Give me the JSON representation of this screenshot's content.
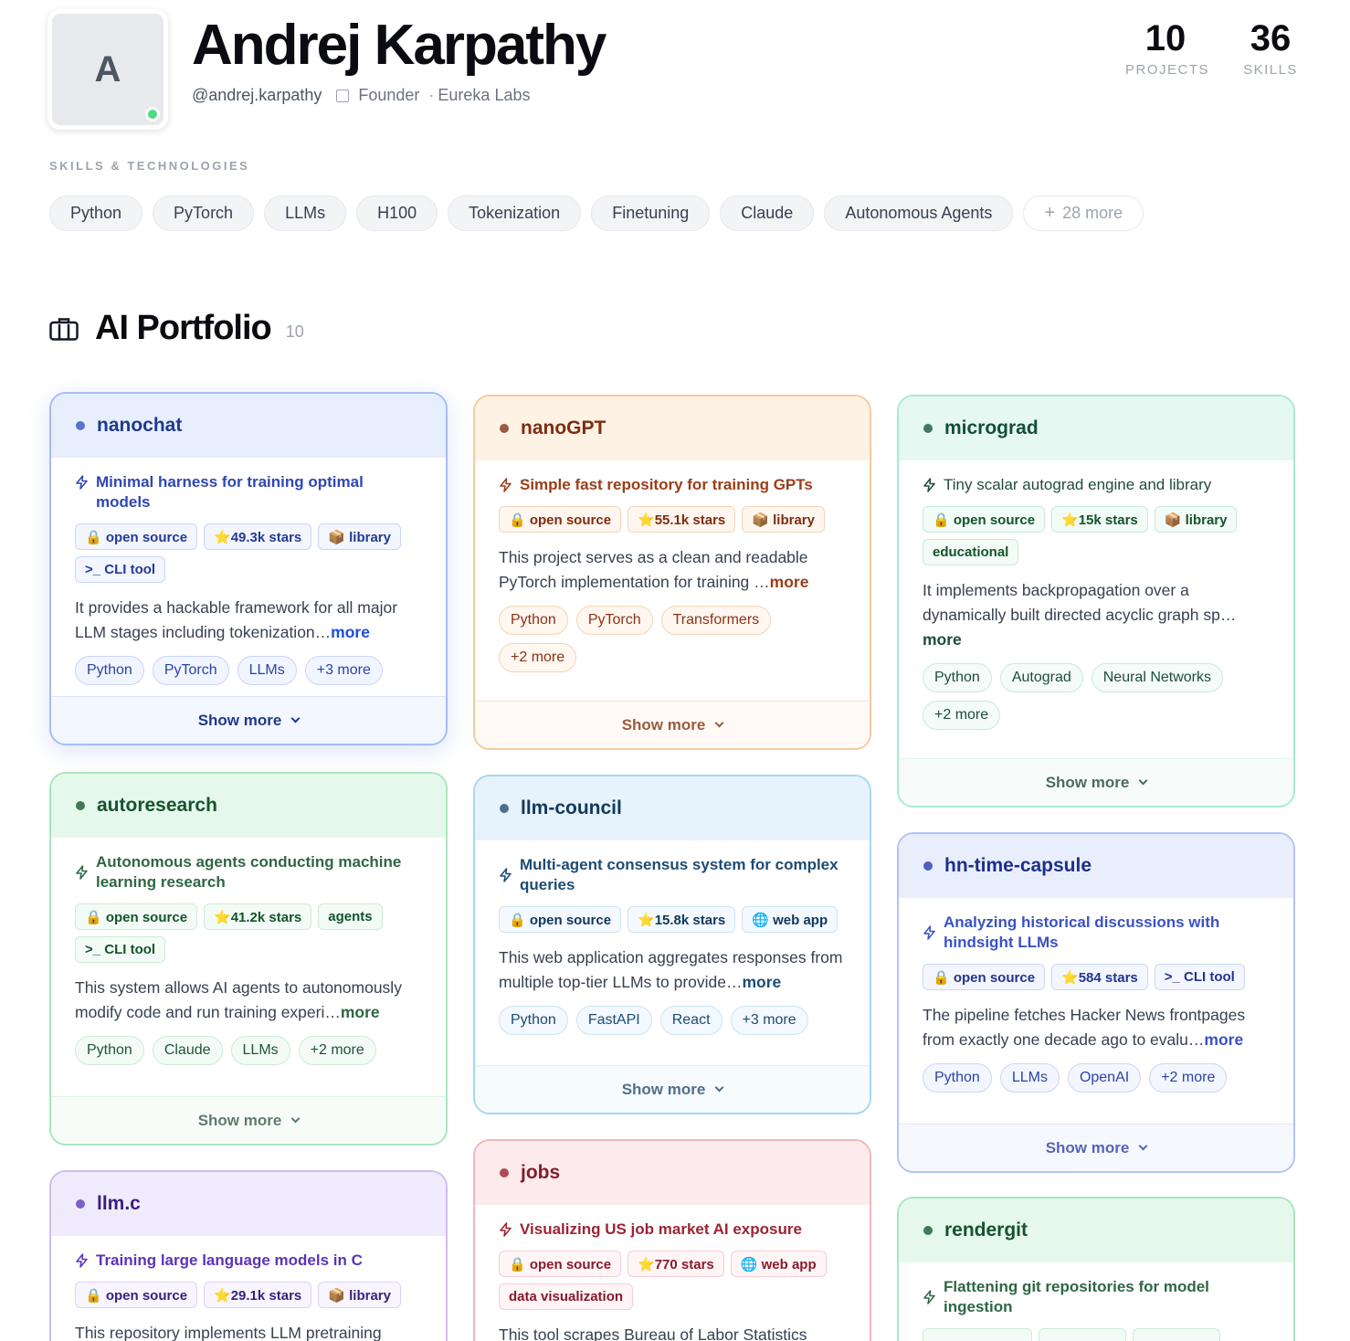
{
  "profile": {
    "initial": "A",
    "name": "Andrej Karpathy",
    "handle": "@andrej.karpathy",
    "role": "Founder",
    "company": "Eureka Labs",
    "online": true
  },
  "stats": [
    {
      "value": "10",
      "label": "PROJECTS"
    },
    {
      "value": "36",
      "label": "SKILLS"
    }
  ],
  "skills_title": "SKILLS & TECHNOLOGIES",
  "skills": [
    "Python",
    "PyTorch",
    "LLMs",
    "H100",
    "Tokenization",
    "Finetuning",
    "Claude",
    "Autonomous Agents"
  ],
  "skills_more": "28 more",
  "portfolio": {
    "title": "AI Portfolio",
    "count": "10"
  },
  "show_more_label": "Show more",
  "more_link": "more",
  "cards": [
    {
      "name": "nanochat",
      "tagline": "Minimal harness for training optimal models",
      "badges": [
        "🔒 open source",
        "⭐49.3k stars",
        "📦 library",
        ">_ CLI tool"
      ],
      "desc": "It provides a hackable framework for all major LLM stages including tokenization…",
      "techs": [
        "Python",
        "PyTorch",
        "LLMs"
      ],
      "techs_more": "+3 more"
    },
    {
      "name": "nanoGPT",
      "tagline": "Simple fast repository for training GPTs",
      "badges": [
        "🔒 open source",
        "⭐55.1k stars",
        "📦 library"
      ],
      "desc": "This project serves as a clean and readable PyTorch implementation for training …",
      "techs": [
        "Python",
        "PyTorch",
        "Transformers"
      ],
      "techs_more": "+2 more"
    },
    {
      "name": "micrograd",
      "tagline": "Tiny scalar autograd engine and library",
      "badges": [
        "🔒 open source",
        "⭐15k stars",
        "📦 library",
        "educational"
      ],
      "desc": "It implements backpropagation over a dynamically built directed acyclic graph sp…",
      "techs": [
        "Python",
        "Autograd",
        "Neural Networks"
      ],
      "techs_more": "+2 more"
    },
    {
      "name": "autoresearch",
      "tagline": "Autonomous agents conducting machine learning research",
      "badges": [
        "🔒 open source",
        "⭐41.2k stars",
        "agents",
        ">_ CLI tool"
      ],
      "desc": "This system allows AI agents to autonomously modify code and run training experi…",
      "techs": [
        "Python",
        "Claude",
        "LLMs"
      ],
      "techs_more": "+2 more"
    },
    {
      "name": "llm-council",
      "tagline": "Multi-agent consensus system for complex queries",
      "badges": [
        "🔒 open source",
        "⭐15.8k stars",
        "🌐 web app"
      ],
      "desc": "This web application aggregates responses from multiple top-tier LLMs to provide…",
      "techs": [
        "Python",
        "FastAPI",
        "React"
      ],
      "techs_more": "+3 more"
    },
    {
      "name": "hn-time-capsule",
      "tagline": "Analyzing historical discussions with hindsight LLMs",
      "badges": [
        "🔒 open source",
        "⭐584 stars",
        ">_ CLI tool"
      ],
      "desc": "The pipeline fetches Hacker News frontpages from exactly one decade ago to evalu…",
      "techs": [
        "Python",
        "LLMs",
        "OpenAI"
      ],
      "techs_more": "+2 more"
    },
    {
      "name": "llm.c",
      "tagline": "Training large language models in C",
      "badges": [
        "🔒 open source",
        "⭐29.1k stars",
        "📦 library"
      ],
      "desc": "This repository implements LLM pretraining"
    },
    {
      "name": "jobs",
      "tagline": "Visualizing US job market AI exposure",
      "badges": [
        "🔒 open source",
        "⭐770 stars",
        "🌐 web app",
        "data visualization"
      ],
      "desc": "This tool scrapes Bureau of Labor Statistics"
    },
    {
      "name": "rendergit",
      "tagline": "Flattening git repositories for model ingestion",
      "badges": []
    }
  ]
}
